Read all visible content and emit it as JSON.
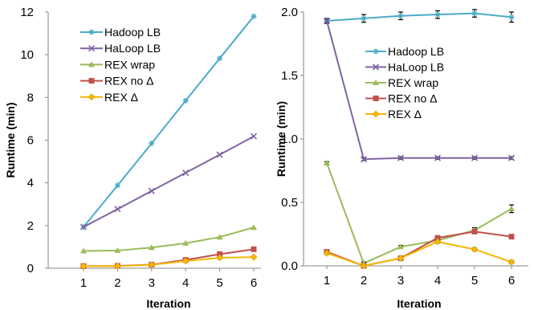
{
  "chart_data": [
    {
      "type": "line",
      "xlabel": "Iteration",
      "ylabel": "Runtime (min)",
      "x": [
        1,
        2,
        3,
        4,
        5,
        6
      ],
      "xticks": [
        "1",
        "2",
        "3",
        "4",
        "5",
        "6"
      ],
      "ylim": [
        0,
        12
      ],
      "yticks": [
        "0",
        "2",
        "4",
        "6",
        "8",
        "10",
        "12"
      ],
      "legend_position": "top-center",
      "series": [
        {
          "name": "Hadoop LB",
          "color": "#4BACC6",
          "marker": "asterisk",
          "values": [
            1.93,
            3.88,
            5.85,
            7.85,
            9.83,
            11.8
          ]
        },
        {
          "name": "HaLoop LB",
          "color": "#8064A2",
          "marker": "x",
          "values": [
            1.93,
            2.77,
            3.62,
            4.47,
            5.32,
            6.18
          ]
        },
        {
          "name": "REX wrap",
          "color": "#9BBB59",
          "marker": "triangle",
          "values": [
            0.81,
            0.83,
            0.97,
            1.17,
            1.46,
            1.91
          ]
        },
        {
          "name": "REX no Δ",
          "color": "#C0504D",
          "marker": "square",
          "values": [
            0.1,
            0.11,
            0.17,
            0.39,
            0.66,
            0.89
          ]
        },
        {
          "name": "REX Δ",
          "color": "#F2B705",
          "marker": "diamond",
          "values": [
            0.1,
            0.1,
            0.16,
            0.34,
            0.49,
            0.52
          ]
        }
      ]
    },
    {
      "type": "line",
      "xlabel": "Iteration",
      "ylabel": "Runtime (min)",
      "x": [
        1,
        2,
        3,
        4,
        5,
        6
      ],
      "xticks": [
        "1",
        "2",
        "3",
        "4",
        "5",
        "6"
      ],
      "ylim": [
        0,
        2.0
      ],
      "yticks": [
        "0.0",
        "0.5",
        "1.0",
        "1.5",
        "2.0"
      ],
      "legend_position": "top-center",
      "error_bars": true,
      "series": [
        {
          "name": "Hadoop LB",
          "color": "#4BACC6",
          "marker": "asterisk",
          "values": [
            1.93,
            1.95,
            1.97,
            1.98,
            1.99,
            1.96
          ],
          "errors": [
            0.02,
            0.03,
            0.03,
            0.03,
            0.03,
            0.04
          ]
        },
        {
          "name": "HaLoop LB",
          "color": "#8064A2",
          "marker": "x",
          "values": [
            1.93,
            0.84,
            0.85,
            0.85,
            0.85,
            0.85
          ],
          "errors": [
            0.01,
            0.01,
            0.01,
            0.01,
            0.01,
            0.01
          ]
        },
        {
          "name": "REX wrap",
          "color": "#9BBB59",
          "marker": "triangle",
          "values": [
            0.81,
            0.02,
            0.15,
            0.2,
            0.28,
            0.45
          ],
          "errors": [
            0.01,
            0.01,
            0.01,
            0.01,
            0.02,
            0.03
          ]
        },
        {
          "name": "REX no Δ",
          "color": "#C0504D",
          "marker": "square",
          "values": [
            0.11,
            0.0,
            0.06,
            0.22,
            0.27,
            0.23
          ],
          "errors": [
            0.01,
            0.01,
            0.01,
            0.01,
            0.01,
            0.01
          ]
        },
        {
          "name": "REX Δ",
          "color": "#F2B705",
          "marker": "diamond",
          "values": [
            0.1,
            0.0,
            0.06,
            0.19,
            0.13,
            0.03
          ],
          "errors": [
            0.01,
            0.01,
            0.01,
            0.01,
            0.01,
            0.01
          ]
        }
      ]
    }
  ]
}
